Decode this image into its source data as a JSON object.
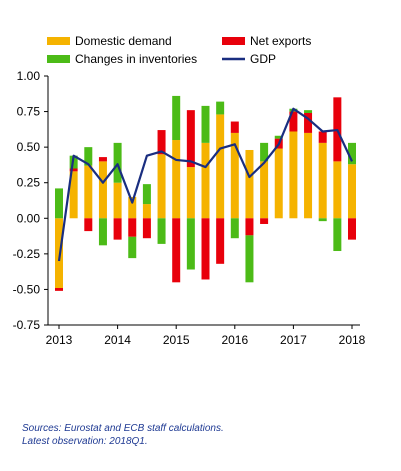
{
  "colors": {
    "domestic_demand": "#F5B300",
    "net_exports": "#E8000B",
    "changes_in_inventories": "#4CBB17",
    "gdp": "#1A2E80"
  },
  "notes": {
    "sources": "Sources: Eurostat and ECB staff  calculations.",
    "latest": "Latest observation: 2018Q1."
  },
  "chart_data": {
    "type": "bar",
    "stacked": true,
    "title": "",
    "xlabel": "",
    "ylabel": "",
    "ylim": [
      -0.75,
      1.0
    ],
    "yticks": [
      "1.00",
      "0.75",
      "0.50",
      "0.25",
      "0.00",
      "-0.25",
      "-0.50",
      "-0.75"
    ],
    "ytick_values": [
      1.0,
      0.75,
      0.5,
      0.25,
      0.0,
      -0.25,
      -0.5,
      -0.75
    ],
    "xtick_labels": [
      "2013",
      "2014",
      "2015",
      "2016",
      "2017",
      "2018"
    ],
    "grid": false,
    "legend": "top",
    "categories": [
      "2013Q1",
      "2013Q2",
      "2013Q3",
      "2013Q4",
      "2014Q1",
      "2014Q2",
      "2014Q3",
      "2014Q4",
      "2015Q1",
      "2015Q2",
      "2015Q3",
      "2015Q4",
      "2016Q1",
      "2016Q2",
      "2016Q3",
      "2016Q4",
      "2017Q1",
      "2017Q2",
      "2017Q3",
      "2017Q4",
      "2018Q1"
    ],
    "series": [
      {
        "name": "Domestic demand",
        "kind": "bar",
        "values": [
          -0.49,
          0.33,
          0.37,
          0.4,
          0.25,
          0.15,
          0.1,
          0.45,
          0.55,
          0.36,
          0.53,
          0.73,
          0.6,
          0.48,
          0.4,
          0.49,
          0.61,
          0.6,
          0.53,
          0.4,
          0.38
        ]
      },
      {
        "name": "Net exports",
        "kind": "bar",
        "values": [
          -0.02,
          0.02,
          -0.09,
          0.03,
          -0.15,
          -0.13,
          -0.14,
          0.17,
          -0.45,
          0.4,
          -0.43,
          -0.32,
          0.08,
          -0.12,
          -0.04,
          0.07,
          0.14,
          0.14,
          0.08,
          0.45,
          -0.15
        ]
      },
      {
        "name": "Changes in inventories",
        "kind": "bar",
        "values": [
          0.21,
          0.09,
          0.13,
          -0.19,
          0.28,
          -0.15,
          0.14,
          -0.18,
          0.31,
          -0.36,
          0.26,
          0.09,
          -0.14,
          -0.33,
          0.13,
          0.02,
          0.02,
          0.02,
          -0.02,
          -0.23,
          0.15
        ]
      },
      {
        "name": "GDP",
        "kind": "line",
        "values": [
          -0.3,
          0.44,
          0.38,
          0.25,
          0.38,
          0.11,
          0.44,
          0.47,
          0.41,
          0.4,
          0.36,
          0.49,
          0.52,
          0.29,
          0.39,
          0.52,
          0.77,
          0.7,
          0.61,
          0.62,
          0.4
        ]
      }
    ]
  }
}
